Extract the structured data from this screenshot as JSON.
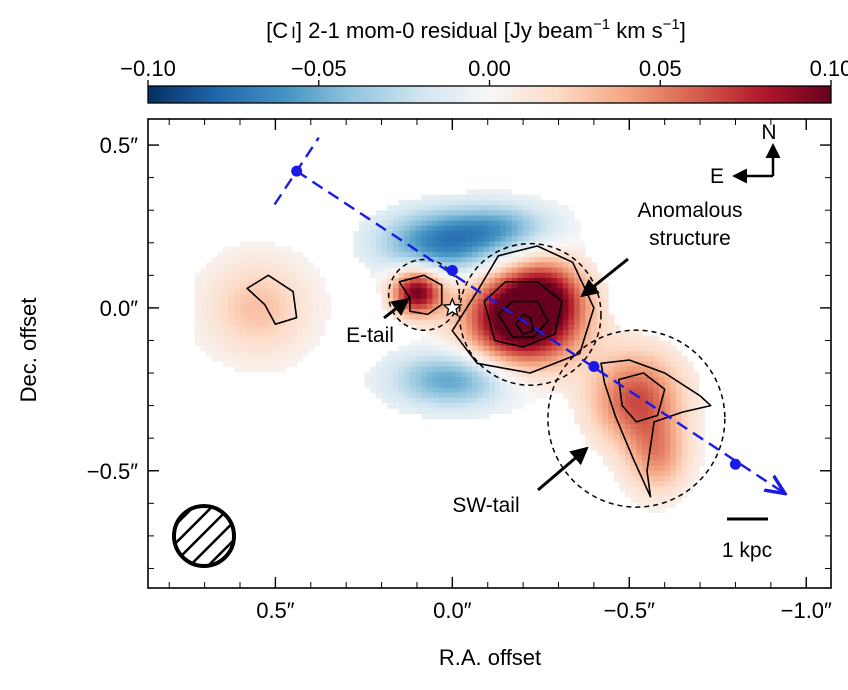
{
  "chart_data": {
    "type": "heatmap",
    "title": "[C I] 2-1 mom-0 residual [Jy beam⁻¹ km s⁻¹]",
    "title_parts": {
      "pre": "[C",
      "ion": "I",
      "mid": "] 2-1 mom-0 residual [Jy beam",
      "exp1": "−1",
      "mid2": " km s",
      "exp2": "−1",
      "post": "]"
    },
    "colorbar": {
      "range": [
        -0.1,
        0.1
      ],
      "colormap": "RdBu_r",
      "ticks": [
        -0.1,
        -0.05,
        0.0,
        0.05,
        0.1
      ],
      "tick_labels": [
        "−0.10",
        "−0.05",
        "0.00",
        "0.05",
        "0.10"
      ]
    },
    "xlabel": "R.A. offset",
    "ylabel": "Dec. offset",
    "xlim": [
      0.86,
      -1.07
    ],
    "ylim": [
      -0.86,
      0.58
    ],
    "xticks": [
      0.5,
      0.0,
      -0.5,
      -1.0
    ],
    "xtick_labels": [
      "0.5″",
      "0.0″",
      "−0.5″",
      "−1.0″"
    ],
    "yticks": [
      0.5,
      0.0,
      -0.5
    ],
    "ytick_labels": [
      "0.5″",
      "0.0″",
      "−0.5″"
    ],
    "residual_components": [
      {
        "name": "anomalous-core",
        "x": -0.2,
        "y": -0.03,
        "sigma_x": 0.11,
        "sigma_y": 0.1,
        "amp": 0.13
      },
      {
        "name": "anomalous-extension",
        "x": -0.27,
        "y": 0.05,
        "sigma_x": 0.07,
        "sigma_y": 0.07,
        "amp": 0.04
      },
      {
        "name": "e-tail",
        "x": 0.1,
        "y": 0.05,
        "sigma_x": 0.05,
        "sigma_y": 0.05,
        "amp": 0.1
      },
      {
        "name": "sw-tail",
        "x": -0.52,
        "y": -0.28,
        "sigma_x": 0.09,
        "sigma_y": 0.1,
        "amp": 0.065
      },
      {
        "name": "sw-tail-south",
        "x": -0.58,
        "y": -0.46,
        "sigma_x": 0.06,
        "sigma_y": 0.08,
        "amp": 0.04
      },
      {
        "name": "west-faint",
        "x": 0.55,
        "y": 0.0,
        "sigma_x": 0.1,
        "sigma_y": 0.1,
        "amp": 0.03
      },
      {
        "name": "north-deficit",
        "x": 0.02,
        "y": 0.2,
        "sigma_x": 0.13,
        "sigma_y": 0.07,
        "amp": -0.07
      },
      {
        "name": "north-deficit-2",
        "x": -0.15,
        "y": 0.25,
        "sigma_x": 0.1,
        "sigma_y": 0.05,
        "amp": -0.035
      },
      {
        "name": "south-deficit",
        "x": 0.0,
        "y": -0.22,
        "sigma_x": 0.12,
        "sigma_y": 0.06,
        "amp": -0.055
      }
    ],
    "contours": [
      {
        "name": "contour-anomalous-outer",
        "points": [
          [
            -0.07,
            0.05
          ],
          [
            0.0,
            -0.07
          ],
          [
            -0.07,
            -0.17
          ],
          [
            -0.22,
            -0.2
          ],
          [
            -0.36,
            -0.14
          ],
          [
            -0.4,
            0.0
          ],
          [
            -0.34,
            0.14
          ],
          [
            -0.24,
            0.19
          ],
          [
            -0.13,
            0.16
          ]
        ]
      },
      {
        "name": "contour-anomalous-mid",
        "points": [
          [
            -0.09,
            0.02
          ],
          [
            -0.12,
            -0.1
          ],
          [
            -0.2,
            -0.12
          ],
          [
            -0.29,
            -0.08
          ],
          [
            -0.31,
            0.02
          ],
          [
            -0.24,
            0.08
          ],
          [
            -0.15,
            0.08
          ]
        ]
      },
      {
        "name": "contour-anomalous-inner",
        "points": [
          [
            -0.13,
            -0.02
          ],
          [
            -0.17,
            -0.09
          ],
          [
            -0.23,
            -0.09
          ],
          [
            -0.27,
            -0.04
          ],
          [
            -0.24,
            0.02
          ],
          [
            -0.17,
            0.02
          ]
        ]
      },
      {
        "name": "contour-anomalous-core",
        "points": [
          [
            -0.18,
            -0.05
          ],
          [
            -0.2,
            -0.08
          ],
          [
            -0.23,
            -0.07
          ],
          [
            -0.22,
            -0.03
          ],
          [
            -0.2,
            -0.02
          ]
        ]
      },
      {
        "name": "contour-e-tail",
        "points": [
          [
            0.15,
            0.08
          ],
          [
            0.12,
            0.03
          ],
          [
            0.12,
            -0.01
          ],
          [
            0.07,
            -0.02
          ],
          [
            0.03,
            0.01
          ],
          [
            0.03,
            0.07
          ],
          [
            0.08,
            0.1
          ]
        ]
      },
      {
        "name": "contour-sw-tail",
        "points": [
          [
            -0.42,
            -0.17
          ],
          [
            -0.5,
            -0.16
          ],
          [
            -0.6,
            -0.2
          ],
          [
            -0.7,
            -0.27
          ],
          [
            -0.73,
            -0.3
          ],
          [
            -0.65,
            -0.32
          ],
          [
            -0.57,
            -0.35
          ],
          [
            -0.55,
            -0.5
          ],
          [
            -0.56,
            -0.58
          ],
          [
            -0.51,
            -0.46
          ],
          [
            -0.46,
            -0.33
          ],
          [
            -0.43,
            -0.23
          ]
        ]
      },
      {
        "name": "contour-sw-inner",
        "points": [
          [
            -0.47,
            -0.22
          ],
          [
            -0.54,
            -0.2
          ],
          [
            -0.6,
            -0.25
          ],
          [
            -0.58,
            -0.33
          ],
          [
            -0.52,
            -0.35
          ],
          [
            -0.48,
            -0.3
          ]
        ]
      },
      {
        "name": "contour-west",
        "points": [
          [
            0.58,
            0.06
          ],
          [
            0.52,
            0.1
          ],
          [
            0.45,
            0.05
          ],
          [
            0.44,
            -0.03
          ],
          [
            0.5,
            -0.05
          ],
          [
            0.53,
            0.01
          ]
        ]
      }
    ],
    "circles": [
      {
        "name": "circle-e-tail",
        "x": 0.08,
        "y": 0.04,
        "r": 0.1
      },
      {
        "name": "circle-anomalous",
        "x": -0.22,
        "y": -0.02,
        "r": 0.2
      },
      {
        "name": "circle-sw-tail",
        "x": -0.52,
        "y": -0.34,
        "r": 0.25
      }
    ],
    "slit": {
      "start": [
        0.44,
        0.42
      ],
      "end": [
        -0.94,
        -0.57
      ],
      "points": [
        [
          0.44,
          0.42
        ],
        [
          0.0,
          0.115
        ],
        [
          -0.4,
          -0.18
        ],
        [
          -0.8,
          -0.48
        ]
      ],
      "color": "#1a1ae6"
    },
    "star": {
      "x": 0.0,
      "y": 0.0
    },
    "beam": {
      "major_kpc_label": "",
      "hatch": true
    },
    "annotations": {
      "anomalous": "Anomalous\nstructure",
      "anomalous_line1": "Anomalous",
      "anomalous_line2": "structure",
      "e_tail": "E-tail",
      "sw_tail": "SW-tail",
      "north": "N",
      "east": "E",
      "scalebar": "1 kpc"
    }
  }
}
